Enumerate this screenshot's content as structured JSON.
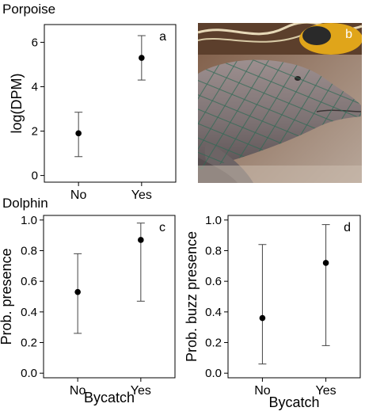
{
  "headings": {
    "top": "Porpoise",
    "bottom": "Dolphin"
  },
  "photo": {
    "label": "b"
  },
  "chart_data": [
    {
      "id": "a",
      "type": "scatter",
      "panel_label": "a",
      "categories": [
        "No",
        "Yes"
      ],
      "values": [
        1.9,
        5.3
      ],
      "lower": [
        0.85,
        4.3
      ],
      "upper": [
        2.85,
        6.3
      ],
      "ylabel": "log(DPM)",
      "xlabel": "",
      "ylim": [
        -0.3,
        6.8
      ],
      "yticks": [
        "0",
        "2",
        "4",
        "6"
      ],
      "grid": false,
      "error_bars": true
    },
    {
      "id": "c",
      "type": "scatter",
      "panel_label": "c",
      "categories": [
        "No",
        "Yes"
      ],
      "values": [
        0.53,
        0.87
      ],
      "lower": [
        0.26,
        0.47
      ],
      "upper": [
        0.78,
        0.98
      ],
      "ylabel": "Prob. presence",
      "xlabel": "Bycatch",
      "ylim": [
        -0.03,
        1.03
      ],
      "yticks": [
        "0.0",
        "0.2",
        "0.4",
        "0.6",
        "0.8",
        "1.0"
      ],
      "grid": false,
      "error_bars": true
    },
    {
      "id": "d",
      "type": "scatter",
      "panel_label": "d",
      "categories": [
        "No",
        "Yes"
      ],
      "values": [
        0.36,
        0.72
      ],
      "lower": [
        0.06,
        0.18
      ],
      "upper": [
        0.84,
        0.97
      ],
      "ylabel": "Prob. buzz presence",
      "xlabel": "Bycatch",
      "ylim": [
        -0.03,
        1.03
      ],
      "yticks": [
        "0.0",
        "0.2",
        "0.4",
        "0.6",
        "0.8",
        "1.0"
      ],
      "grid": false,
      "error_bars": true
    }
  ]
}
